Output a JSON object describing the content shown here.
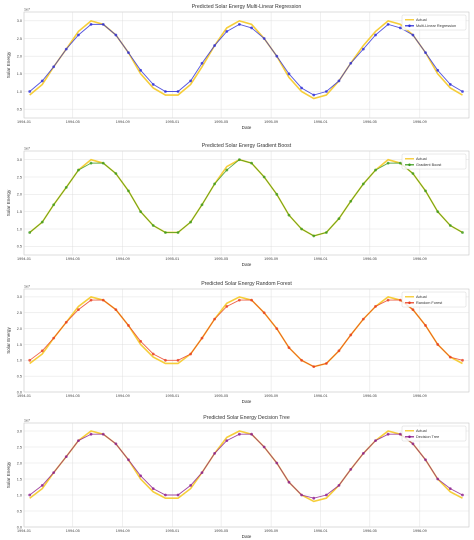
{
  "chart_data": [
    {
      "type": "line",
      "title": "Predicted Solar Energy Multi-Linear Regression",
      "xlabel": "Date",
      "ylabel": "Solar Energy",
      "y_multiplier": "1e7",
      "ylim": [
        0.25,
        3.25
      ],
      "yticks": [
        0.5,
        1.0,
        1.5,
        2.0,
        2.5,
        3.0
      ],
      "xlim": [
        "1994-01-01",
        "1996-12-31"
      ],
      "xticks": [
        "1994-01",
        "1994-05",
        "1994-09",
        "1995-01",
        "1995-05",
        "1995-09",
        "1996-01",
        "1996-05",
        "1996-09"
      ],
      "grid": true,
      "legend": "top-right",
      "series": [
        {
          "name": "Actual",
          "color": "#f5c518",
          "marker": "none",
          "x": [
            "1994-01",
            "1994-02",
            "1994-03",
            "1994-04",
            "1994-05",
            "1994-06",
            "1994-07",
            "1994-08",
            "1994-09",
            "1994-10",
            "1994-11",
            "1994-12",
            "1995-01",
            "1995-02",
            "1995-03",
            "1995-04",
            "1995-05",
            "1995-06",
            "1995-07",
            "1995-08",
            "1995-09",
            "1995-10",
            "1995-11",
            "1995-12",
            "1996-01",
            "1996-02",
            "1996-03",
            "1996-04",
            "1996-05",
            "1996-06",
            "1996-07",
            "1996-08",
            "1996-09",
            "1996-10",
            "1996-11",
            "1996-12"
          ],
          "values": [
            0.9,
            1.2,
            1.7,
            2.2,
            2.7,
            3.0,
            2.9,
            2.6,
            2.1,
            1.5,
            1.1,
            0.9,
            0.9,
            1.2,
            1.7,
            2.3,
            2.8,
            3.0,
            2.9,
            2.5,
            2.0,
            1.4,
            1.0,
            0.8,
            0.9,
            1.3,
            1.8,
            2.3,
            2.7,
            3.0,
            2.9,
            2.6,
            2.1,
            1.5,
            1.1,
            0.9
          ]
        },
        {
          "name": "Multi-Linear Regression",
          "color": "#2b2bd6",
          "marker": "circle",
          "x": [
            "1994-01",
            "1994-02",
            "1994-03",
            "1994-04",
            "1994-05",
            "1994-06",
            "1994-07",
            "1994-08",
            "1994-09",
            "1994-10",
            "1994-11",
            "1994-12",
            "1995-01",
            "1995-02",
            "1995-03",
            "1995-04",
            "1995-05",
            "1995-06",
            "1995-07",
            "1995-08",
            "1995-09",
            "1995-10",
            "1995-11",
            "1995-12",
            "1996-01",
            "1996-02",
            "1996-03",
            "1996-04",
            "1996-05",
            "1996-06",
            "1996-07",
            "1996-08",
            "1996-09",
            "1996-10",
            "1996-11",
            "1996-12"
          ],
          "values": [
            1.0,
            1.3,
            1.7,
            2.2,
            2.6,
            2.9,
            2.9,
            2.6,
            2.1,
            1.6,
            1.2,
            1.0,
            1.0,
            1.3,
            1.8,
            2.3,
            2.7,
            2.9,
            2.8,
            2.5,
            2.0,
            1.5,
            1.1,
            0.9,
            1.0,
            1.3,
            1.8,
            2.2,
            2.6,
            2.9,
            2.8,
            2.6,
            2.1,
            1.6,
            1.2,
            1.0
          ]
        }
      ]
    },
    {
      "type": "line",
      "title": "Predicted Solar Energy Gradient Boost",
      "xlabel": "Date",
      "ylabel": "Solar Energy",
      "y_multiplier": "1e7",
      "ylim": [
        0.25,
        3.25
      ],
      "yticks": [
        0.5,
        1.0,
        1.5,
        2.0,
        2.5,
        3.0
      ],
      "xlim": [
        "1994-01-01",
        "1996-12-31"
      ],
      "xticks": [
        "1994-01",
        "1994-05",
        "1994-09",
        "1995-01",
        "1995-05",
        "1995-09",
        "1996-01",
        "1996-05",
        "1996-09"
      ],
      "grid": true,
      "legend": "top-right",
      "series": [
        {
          "name": "Actual",
          "color": "#f5c518",
          "marker": "none",
          "x": [
            "1994-01",
            "1994-02",
            "1994-03",
            "1994-04",
            "1994-05",
            "1994-06",
            "1994-07",
            "1994-08",
            "1994-09",
            "1994-10",
            "1994-11",
            "1994-12",
            "1995-01",
            "1995-02",
            "1995-03",
            "1995-04",
            "1995-05",
            "1995-06",
            "1995-07",
            "1995-08",
            "1995-09",
            "1995-10",
            "1995-11",
            "1995-12",
            "1996-01",
            "1996-02",
            "1996-03",
            "1996-04",
            "1996-05",
            "1996-06",
            "1996-07",
            "1996-08",
            "1996-09",
            "1996-10",
            "1996-11",
            "1996-12"
          ],
          "values": [
            0.9,
            1.2,
            1.7,
            2.2,
            2.7,
            3.0,
            2.9,
            2.6,
            2.1,
            1.5,
            1.1,
            0.9,
            0.9,
            1.2,
            1.7,
            2.3,
            2.8,
            3.0,
            2.9,
            2.5,
            2.0,
            1.4,
            1.0,
            0.8,
            0.9,
            1.3,
            1.8,
            2.3,
            2.7,
            3.0,
            2.9,
            2.6,
            2.1,
            1.5,
            1.1,
            0.9
          ]
        },
        {
          "name": "Gradient Boost",
          "color": "#3a9a1a",
          "marker": "circle",
          "x": [
            "1994-01",
            "1994-02",
            "1994-03",
            "1994-04",
            "1994-05",
            "1994-06",
            "1994-07",
            "1994-08",
            "1994-09",
            "1994-10",
            "1994-11",
            "1994-12",
            "1995-01",
            "1995-02",
            "1995-03",
            "1995-04",
            "1995-05",
            "1995-06",
            "1995-07",
            "1995-08",
            "1995-09",
            "1995-10",
            "1995-11",
            "1995-12",
            "1996-01",
            "1996-02",
            "1996-03",
            "1996-04",
            "1996-05",
            "1996-06",
            "1996-07",
            "1996-08",
            "1996-09",
            "1996-10",
            "1996-11",
            "1996-12"
          ],
          "values": [
            0.9,
            1.2,
            1.7,
            2.2,
            2.7,
            2.9,
            2.9,
            2.6,
            2.1,
            1.5,
            1.1,
            0.9,
            0.9,
            1.2,
            1.7,
            2.3,
            2.7,
            3.0,
            2.9,
            2.5,
            2.0,
            1.4,
            1.0,
            0.8,
            0.9,
            1.3,
            1.8,
            2.3,
            2.7,
            2.9,
            2.9,
            2.6,
            2.1,
            1.5,
            1.1,
            0.9
          ]
        }
      ]
    },
    {
      "type": "line",
      "title": "Predicted Solar Energy Random Forest",
      "xlabel": "Date",
      "ylabel": "Solar Energy",
      "y_multiplier": "1e7",
      "ylim": [
        0.0,
        3.25
      ],
      "yticks": [
        0.0,
        0.5,
        1.0,
        1.5,
        2.0,
        2.5,
        3.0
      ],
      "xlim": [
        "1994-01-01",
        "1996-12-31"
      ],
      "xticks": [
        "1994-01",
        "1994-05",
        "1994-09",
        "1995-01",
        "1995-05",
        "1995-09",
        "1996-01",
        "1996-05",
        "1996-09"
      ],
      "grid": true,
      "legend": "top-right",
      "series": [
        {
          "name": "Actual",
          "color": "#f5c518",
          "marker": "none",
          "x": [
            "1994-01",
            "1994-02",
            "1994-03",
            "1994-04",
            "1994-05",
            "1994-06",
            "1994-07",
            "1994-08",
            "1994-09",
            "1994-10",
            "1994-11",
            "1994-12",
            "1995-01",
            "1995-02",
            "1995-03",
            "1995-04",
            "1995-05",
            "1995-06",
            "1995-07",
            "1995-08",
            "1995-09",
            "1995-10",
            "1995-11",
            "1995-12",
            "1996-01",
            "1996-02",
            "1996-03",
            "1996-04",
            "1996-05",
            "1996-06",
            "1996-07",
            "1996-08",
            "1996-09",
            "1996-10",
            "1996-11",
            "1996-12"
          ],
          "values": [
            0.9,
            1.2,
            1.7,
            2.2,
            2.7,
            3.0,
            2.9,
            2.6,
            2.1,
            1.5,
            1.1,
            0.9,
            0.9,
            1.2,
            1.7,
            2.3,
            2.8,
            3.0,
            2.9,
            2.5,
            2.0,
            1.4,
            1.0,
            0.8,
            0.9,
            1.3,
            1.8,
            2.3,
            2.7,
            3.0,
            2.9,
            2.6,
            2.1,
            1.5,
            1.1,
            0.9
          ]
        },
        {
          "name": "Random Forest",
          "color": "#e83a1c",
          "marker": "circle",
          "x": [
            "1994-01",
            "1994-02",
            "1994-03",
            "1994-04",
            "1994-05",
            "1994-06",
            "1994-07",
            "1994-08",
            "1994-09",
            "1994-10",
            "1994-11",
            "1994-12",
            "1995-01",
            "1995-02",
            "1995-03",
            "1995-04",
            "1995-05",
            "1995-06",
            "1995-07",
            "1995-08",
            "1995-09",
            "1995-10",
            "1995-11",
            "1995-12",
            "1996-01",
            "1996-02",
            "1996-03",
            "1996-04",
            "1996-05",
            "1996-06",
            "1996-07",
            "1996-08",
            "1996-09",
            "1996-10",
            "1996-11",
            "1996-12"
          ],
          "values": [
            1.0,
            1.3,
            1.7,
            2.2,
            2.6,
            2.9,
            2.9,
            2.6,
            2.1,
            1.6,
            1.2,
            1.0,
            1.0,
            1.2,
            1.7,
            2.3,
            2.7,
            2.9,
            2.9,
            2.5,
            2.0,
            1.4,
            1.0,
            0.8,
            0.9,
            1.3,
            1.8,
            2.3,
            2.7,
            2.9,
            2.9,
            2.6,
            2.1,
            1.5,
            1.1,
            1.0
          ]
        }
      ]
    },
    {
      "type": "line",
      "title": "Predicted Solar Energy Decision Tree",
      "xlabel": "Date",
      "ylabel": "Solar Energy",
      "y_multiplier": "1e7",
      "ylim": [
        0.0,
        3.25
      ],
      "yticks": [
        0.0,
        0.5,
        1.0,
        1.5,
        2.0,
        2.5,
        3.0
      ],
      "xlim": [
        "1994-01-01",
        "1996-12-31"
      ],
      "xticks": [
        "1994-01",
        "1994-05",
        "1994-09",
        "1995-01",
        "1995-05",
        "1995-09",
        "1996-01",
        "1996-05",
        "1996-09"
      ],
      "grid": true,
      "legend": "top-right",
      "series": [
        {
          "name": "Actual",
          "color": "#f5c518",
          "marker": "none",
          "x": [
            "1994-01",
            "1994-02",
            "1994-03",
            "1994-04",
            "1994-05",
            "1994-06",
            "1994-07",
            "1994-08",
            "1994-09",
            "1994-10",
            "1994-11",
            "1994-12",
            "1995-01",
            "1995-02",
            "1995-03",
            "1995-04",
            "1995-05",
            "1995-06",
            "1995-07",
            "1995-08",
            "1995-09",
            "1995-10",
            "1995-11",
            "1995-12",
            "1996-01",
            "1996-02",
            "1996-03",
            "1996-04",
            "1996-05",
            "1996-06",
            "1996-07",
            "1996-08",
            "1996-09",
            "1996-10",
            "1996-11",
            "1996-12"
          ],
          "values": [
            0.9,
            1.2,
            1.7,
            2.2,
            2.7,
            3.0,
            2.9,
            2.6,
            2.1,
            1.5,
            1.1,
            0.9,
            0.9,
            1.2,
            1.7,
            2.3,
            2.8,
            3.0,
            2.9,
            2.5,
            2.0,
            1.4,
            1.0,
            0.8,
            0.9,
            1.3,
            1.8,
            2.3,
            2.7,
            3.0,
            2.9,
            2.6,
            2.1,
            1.5,
            1.1,
            0.9
          ]
        },
        {
          "name": "Decision Tree",
          "color": "#8b1a8b",
          "marker": "circle",
          "x": [
            "1994-01",
            "1994-02",
            "1994-03",
            "1994-04",
            "1994-05",
            "1994-06",
            "1994-07",
            "1994-08",
            "1994-09",
            "1994-10",
            "1994-11",
            "1994-12",
            "1995-01",
            "1995-02",
            "1995-03",
            "1995-04",
            "1995-05",
            "1995-06",
            "1995-07",
            "1995-08",
            "1995-09",
            "1995-10",
            "1995-11",
            "1995-12",
            "1996-01",
            "1996-02",
            "1996-03",
            "1996-04",
            "1996-05",
            "1996-06",
            "1996-07",
            "1996-08",
            "1996-09",
            "1996-10",
            "1996-11",
            "1996-12"
          ],
          "values": [
            1.0,
            1.3,
            1.7,
            2.2,
            2.7,
            2.9,
            2.9,
            2.6,
            2.1,
            1.6,
            1.2,
            1.0,
            1.0,
            1.3,
            1.7,
            2.3,
            2.7,
            2.9,
            2.9,
            2.5,
            2.0,
            1.4,
            1.0,
            0.9,
            1.0,
            1.3,
            1.8,
            2.3,
            2.7,
            2.9,
            2.9,
            2.6,
            2.1,
            1.5,
            1.2,
            1.0
          ]
        }
      ]
    }
  ]
}
